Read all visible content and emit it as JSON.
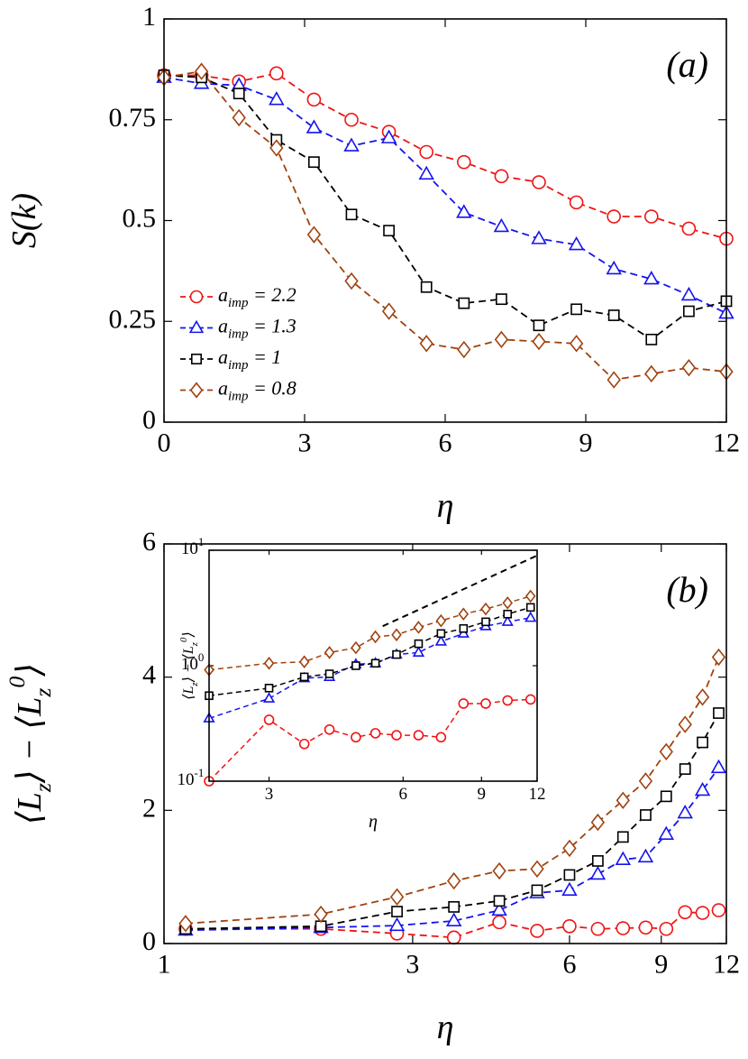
{
  "chart_data": [
    {
      "type": "line",
      "annotation": "(a)",
      "xlabel": "η",
      "ylabel": "S(k)",
      "xlim": [
        0,
        12
      ],
      "xticks": [
        0,
        3,
        6,
        9,
        12
      ],
      "ylim": [
        0,
        1
      ],
      "yticks": [
        0,
        0.25,
        0.5,
        0.75,
        1
      ],
      "legend": "lower left",
      "x": [
        0,
        0.8,
        1.6,
        2.4,
        3.2,
        4.0,
        4.8,
        5.6,
        6.4,
        7.2,
        8.0,
        8.8,
        9.6,
        10.4,
        11.2,
        12.0
      ],
      "series": [
        {
          "name": "a_imp = 2.2",
          "color": "#f01414",
          "marker": "circle",
          "values": [
            0.86,
            0.86,
            0.845,
            0.865,
            0.8,
            0.75,
            0.72,
            0.67,
            0.645,
            0.61,
            0.595,
            0.545,
            0.51,
            0.51,
            0.48,
            0.455
          ]
        },
        {
          "name": "a_imp = 1.3",
          "color": "#1414f0",
          "marker": "triangle",
          "values": [
            0.855,
            0.84,
            0.835,
            0.8,
            0.73,
            0.685,
            0.705,
            0.615,
            0.52,
            0.485,
            0.455,
            0.44,
            0.38,
            0.355,
            0.315,
            0.27
          ]
        },
        {
          "name": "a_imp = 1",
          "color": "#000000",
          "marker": "square",
          "values": [
            0.86,
            0.855,
            0.815,
            0.7,
            0.645,
            0.515,
            0.475,
            0.335,
            0.295,
            0.305,
            0.24,
            0.28,
            0.265,
            0.205,
            0.275,
            0.3
          ]
        },
        {
          "name": "a_imp = 0.8",
          "color": "#a0420e",
          "marker": "diamond",
          "values": [
            0.855,
            0.87,
            0.755,
            0.68,
            0.465,
            0.35,
            0.275,
            0.195,
            0.18,
            0.205,
            0.2,
            0.195,
            0.105,
            0.12,
            0.135,
            0.125
          ]
        }
      ]
    },
    {
      "type": "line",
      "annotation": "(b)",
      "xlabel": "η",
      "ylabel": "⟨L_z⟩ − ⟨L_z^0⟩",
      "xscale": "log",
      "xlim": [
        1,
        12
      ],
      "xticks": [
        1,
        3,
        6,
        9,
        12
      ],
      "ylim": [
        0,
        6
      ],
      "yticks": [
        0,
        2,
        4,
        6
      ],
      "x": [
        1.1,
        2.0,
        2.8,
        3.6,
        4.4,
        5.2,
        6.0,
        6.8,
        7.6,
        8.4,
        9.2,
        10.0,
        10.8,
        11.6
      ],
      "series": [
        {
          "color": "#f01414",
          "marker": "circle",
          "values": [
            0.22,
            0.22,
            0.15,
            0.09,
            0.32,
            0.19,
            0.26,
            0.22,
            0.23,
            0.24,
            0.22,
            0.47,
            0.46,
            0.5
          ]
        },
        {
          "color": "#1414f0",
          "marker": "triangle",
          "values": [
            0.2,
            0.24,
            0.27,
            0.34,
            0.5,
            0.76,
            0.8,
            1.04,
            1.26,
            1.3,
            1.64,
            1.96,
            2.3,
            2.64
          ]
        },
        {
          "color": "#000000",
          "marker": "square",
          "values": [
            0.22,
            0.26,
            0.48,
            0.55,
            0.64,
            0.8,
            1.03,
            1.24,
            1.6,
            1.93,
            2.21,
            2.62,
            3.02,
            3.46
          ]
        },
        {
          "color": "#a0420e",
          "marker": "diamond",
          "values": [
            0.3,
            0.44,
            0.7,
            0.94,
            1.09,
            1.12,
            1.43,
            1.82,
            2.15,
            2.44,
            2.88,
            3.29,
            3.7,
            4.3
          ]
        }
      ]
    },
    {
      "type": "line",
      "xlabel": "η",
      "ylabel": "⟨L_z⟩ − ⟨L_z^0⟩",
      "xscale": "log",
      "yscale": "log",
      "xlim": [
        2.2,
        12
      ],
      "xticks": [
        3,
        6,
        9,
        12
      ],
      "ylim": [
        0.1,
        10
      ],
      "yticks": [
        {
          "value": 0.1,
          "label": "10^-1"
        },
        {
          "value": 1,
          "label": "10^0"
        },
        {
          "value": 10,
          "label": "10^1"
        }
      ],
      "x": [
        2.2,
        3.0,
        3.6,
        4.1,
        4.7,
        5.2,
        5.8,
        6.5,
        7.3,
        8.2,
        9.2,
        10.3,
        11.6
      ],
      "reference_line": {
        "x": [
          5.4,
          12
        ],
        "values": [
          2.2,
          9.0
        ],
        "color": "#000000"
      },
      "series": [
        {
          "color": "#f01414",
          "marker": "circle",
          "values": [
            0.1,
            0.34,
            0.21,
            0.28,
            0.24,
            0.26,
            0.25,
            0.25,
            0.24,
            0.47,
            0.47,
            0.5,
            0.51
          ]
        },
        {
          "color": "#1414f0",
          "marker": "triangle",
          "values": [
            0.35,
            0.52,
            0.78,
            0.8,
            1.03,
            1.05,
            1.25,
            1.3,
            1.62,
            1.9,
            2.2,
            2.4,
            2.6
          ]
        },
        {
          "color": "#000000",
          "marker": "square",
          "values": [
            0.55,
            0.64,
            0.8,
            0.85,
            1.0,
            1.05,
            1.25,
            1.55,
            1.9,
            2.1,
            2.4,
            2.8,
            3.2
          ]
        },
        {
          "color": "#a0420e",
          "marker": "diamond",
          "values": [
            0.92,
            1.05,
            1.08,
            1.3,
            1.43,
            1.78,
            1.85,
            2.15,
            2.45,
            2.8,
            3.1,
            3.5,
            4.0
          ]
        }
      ]
    }
  ]
}
